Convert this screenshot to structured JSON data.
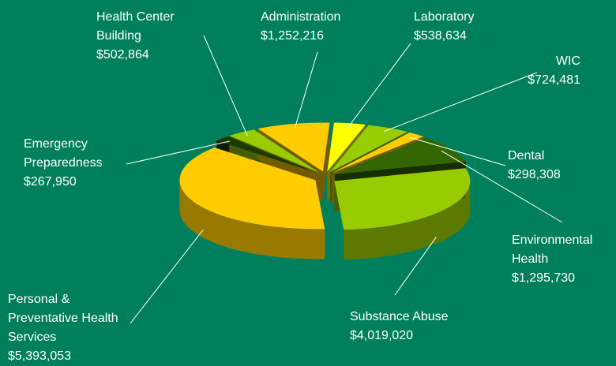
{
  "chart_data": {
    "type": "pie3d",
    "categories": [
      "Laboratory",
      "WIC",
      "Dental",
      "Environmental Health",
      "Substance Abuse",
      "Personal & Preventative Health Services",
      "Emergency Preparedness",
      "Health Center Building",
      "Administration"
    ],
    "values": [
      538634,
      724481,
      298308,
      1295730,
      4019020,
      5393053,
      267950,
      502864,
      1252216
    ],
    "value_labels": [
      "$538,634",
      "$724,481",
      "$298,308",
      "$1,295,730",
      "$4,019,020",
      "$5,393,053",
      "$267,950",
      "$502,864",
      "$1,252,216"
    ],
    "colors": [
      "#ffff00",
      "#99cc00",
      "#ffcc00",
      "#336600",
      "#99cc00",
      "#ffcc00",
      "#1a3a00",
      "#99cc00",
      "#ffcc00"
    ]
  }
}
